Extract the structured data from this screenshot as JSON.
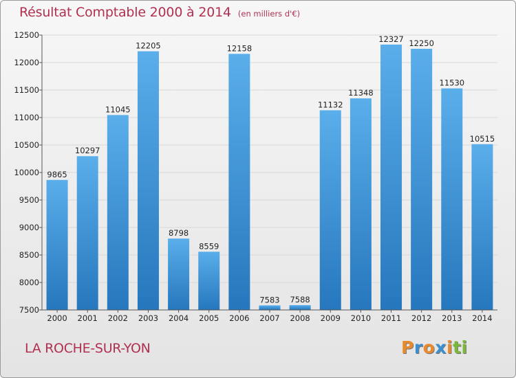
{
  "logo": {
    "text": "Proxiti",
    "letters": [
      {
        "ch": "P",
        "color": "#e88a2c"
      },
      {
        "ch": "r",
        "color": "#3a8fd0"
      },
      {
        "ch": "o",
        "color": "#e88a2c"
      },
      {
        "ch": "x",
        "color": "#3a8fd0"
      },
      {
        "ch": "i",
        "color": "#e88a2c"
      },
      {
        "ch": "t",
        "color": "#7ab83a"
      },
      {
        "ch": "i",
        "color": "#7ab83a"
      }
    ]
  },
  "colors": {
    "title": "#b03050",
    "bar_light": "#5aaeea",
    "bar_dark": "#2677bd",
    "grid": "#d8d8d8",
    "axis": "#555555"
  },
  "chart_data": {
    "type": "bar",
    "title": "Résultat Comptable 2000 à 2014",
    "subtitle": "(en milliers d'€)",
    "location": "LA ROCHE-SUR-YON",
    "categories": [
      "2000",
      "2001",
      "2002",
      "2003",
      "2004",
      "2005",
      "2006",
      "2007",
      "2008",
      "2009",
      "2010",
      "2011",
      "2012",
      "2013",
      "2014"
    ],
    "values": [
      9865,
      10297,
      11045,
      12205,
      8798,
      8559,
      12158,
      7583,
      7588,
      11132,
      11348,
      12327,
      12250,
      11530,
      10515
    ],
    "ylim": [
      7500,
      12500
    ],
    "yticks": [
      7500,
      8000,
      8500,
      9000,
      9500,
      10000,
      10500,
      11000,
      11500,
      12000,
      12500
    ],
    "grid": true,
    "legend": "none",
    "xlabel": "",
    "ylabel": ""
  }
}
